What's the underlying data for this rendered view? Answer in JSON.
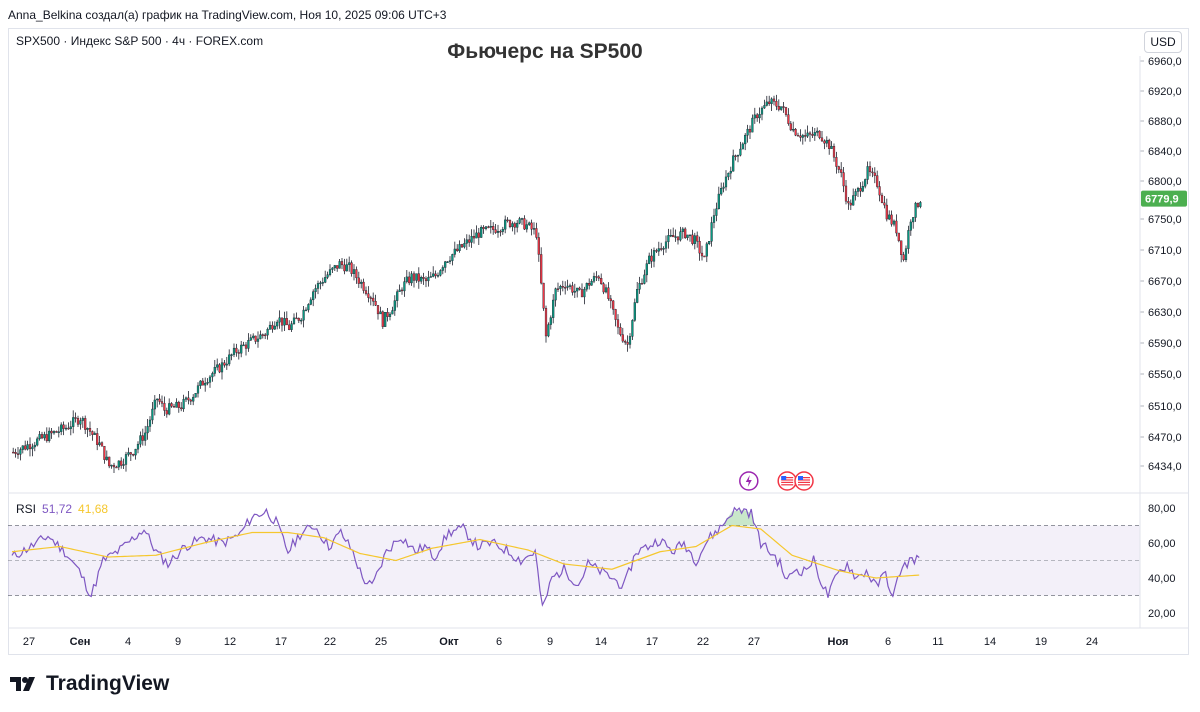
{
  "header": {
    "author_line": "Anna_Belkina создал(а) график на TradingView.com, Ноя 10, 2025 09:06 UTC+3",
    "symbol_line": "SPX500 · Индекс S&P 500 · 4ч · FOREX.com",
    "chart_title": "Фьючерс на SP500",
    "currency": "USD"
  },
  "brand": {
    "name": "TradingView",
    "logo_icon": "tradingview-logo-icon"
  },
  "colors": {
    "up": "#089981",
    "down": "#f23645",
    "candle_body": "#1e222d",
    "rsi": "#7e57c2",
    "rsi_ma": "#f5c72e",
    "price_label": "#4caf50"
  },
  "chart_data": {
    "type": "candlestick",
    "timeframe": "4ч",
    "price_axis": {
      "ticks": [
        "6960,0",
        "6920,0",
        "6880,0",
        "6840,0",
        "6800,0",
        "6750,0",
        "6710,0",
        "6670,0",
        "6630,0",
        "6590,0",
        "6550,0",
        "6510,0",
        "6470,0",
        "6434,0"
      ],
      "range": [
        6420,
        6975
      ]
    },
    "last_price": "6779,9",
    "time_axis": [
      "27",
      "Сен",
      "4",
      "9",
      "12",
      "17",
      "22",
      "25",
      "Окт",
      "6",
      "9",
      "14",
      "17",
      "22",
      "27",
      "Ноя",
      "6",
      "11",
      "14",
      "19",
      "24"
    ],
    "path_points": [
      [
        0,
        6450
      ],
      [
        8,
        6462
      ],
      [
        15,
        6472
      ],
      [
        22,
        6482
      ],
      [
        28,
        6495
      ],
      [
        36,
        6460
      ],
      [
        40,
        6432
      ],
      [
        45,
        6438
      ],
      [
        50,
        6452
      ],
      [
        55,
        6475
      ],
      [
        60,
        6520
      ],
      [
        63,
        6505
      ],
      [
        70,
        6510
      ],
      [
        75,
        6525
      ],
      [
        80,
        6545
      ],
      [
        86,
        6560
      ],
      [
        93,
        6582
      ],
      [
        98,
        6592
      ],
      [
        105,
        6605
      ],
      [
        110,
        6625
      ],
      [
        115,
        6612
      ],
      [
        120,
        6628
      ],
      [
        125,
        6660
      ],
      [
        130,
        6678
      ],
      [
        136,
        6695
      ],
      [
        140,
        6690
      ],
      [
        145,
        6670
      ],
      [
        150,
        6650
      ],
      [
        154,
        6620
      ],
      [
        158,
        6640
      ],
      [
        162,
        6665
      ],
      [
        166,
        6678
      ],
      [
        172,
        6672
      ],
      [
        176,
        6680
      ],
      [
        180,
        6700
      ],
      [
        185,
        6712
      ],
      [
        190,
        6725
      ],
      [
        194,
        6735
      ],
      [
        200,
        6740
      ],
      [
        206,
        6748
      ],
      [
        210,
        6750
      ],
      [
        214,
        6745
      ],
      [
        218,
        6735
      ],
      [
        222,
        6600
      ],
      [
        226,
        6660
      ],
      [
        230,
        6670
      ],
      [
        236,
        6655
      ],
      [
        240,
        6670
      ],
      [
        244,
        6680
      ],
      [
        248,
        6650
      ],
      [
        252,
        6610
      ],
      [
        256,
        6590
      ],
      [
        260,
        6660
      ],
      [
        265,
        6700
      ],
      [
        270,
        6720
      ],
      [
        275,
        6730
      ],
      [
        280,
        6735
      ],
      [
        284,
        6725
      ],
      [
        288,
        6700
      ],
      [
        292,
        6760
      ],
      [
        296,
        6800
      ],
      [
        300,
        6830
      ],
      [
        305,
        6860
      ],
      [
        310,
        6890
      ],
      [
        315,
        6905
      ],
      [
        320,
        6900
      ],
      [
        325,
        6870
      ],
      [
        330,
        6860
      ],
      [
        336,
        6865
      ],
      [
        340,
        6850
      ],
      [
        345,
        6810
      ],
      [
        348,
        6770
      ],
      [
        352,
        6790
      ],
      [
        356,
        6815
      ],
      [
        360,
        6800
      ],
      [
        364,
        6760
      ],
      [
        368,
        6740
      ],
      [
        371,
        6700
      ],
      [
        374,
        6755
      ],
      [
        378,
        6780
      ]
    ],
    "rsi": {
      "label": "RSI",
      "value": "51,72",
      "ma_value": "41,68",
      "axis_ticks": [
        "80,00",
        "60,00",
        "40,00",
        "20,00"
      ],
      "upper_band": 70,
      "middle_band": 50,
      "lower_band": 30,
      "path_points": [
        [
          0,
          52
        ],
        [
          8,
          58
        ],
        [
          15,
          64
        ],
        [
          22,
          55
        ],
        [
          28,
          44
        ],
        [
          33,
          30
        ],
        [
          38,
          50
        ],
        [
          45,
          56
        ],
        [
          55,
          68
        ],
        [
          60,
          55
        ],
        [
          65,
          48
        ],
        [
          72,
          58
        ],
        [
          80,
          63
        ],
        [
          88,
          60
        ],
        [
          95,
          65
        ],
        [
          100,
          75
        ],
        [
          106,
          78
        ],
        [
          110,
          72
        ],
        [
          115,
          55
        ],
        [
          120,
          65
        ],
        [
          126,
          70
        ],
        [
          132,
          58
        ],
        [
          137,
          66
        ],
        [
          142,
          55
        ],
        [
          146,
          40
        ],
        [
          150,
          35
        ],
        [
          156,
          55
        ],
        [
          162,
          64
        ],
        [
          168,
          55
        ],
        [
          172,
          58
        ],
        [
          176,
          52
        ],
        [
          182,
          66
        ],
        [
          188,
          68
        ],
        [
          194,
          58
        ],
        [
          200,
          60
        ],
        [
          206,
          56
        ],
        [
          212,
          50
        ],
        [
          218,
          55
        ],
        [
          221,
          22
        ],
        [
          225,
          40
        ],
        [
          230,
          45
        ],
        [
          236,
          36
        ],
        [
          240,
          48
        ],
        [
          245,
          44
        ],
        [
          250,
          40
        ],
        [
          255,
          35
        ],
        [
          260,
          55
        ],
        [
          265,
          58
        ],
        [
          270,
          62
        ],
        [
          275,
          55
        ],
        [
          280,
          60
        ],
        [
          285,
          50
        ],
        [
          290,
          62
        ],
        [
          296,
          70
        ],
        [
          300,
          78
        ],
        [
          305,
          79
        ],
        [
          308,
          77
        ],
        [
          312,
          60
        ],
        [
          318,
          52
        ],
        [
          320,
          48
        ],
        [
          323,
          38
        ],
        [
          326,
          45
        ],
        [
          330,
          44
        ],
        [
          334,
          50
        ],
        [
          338,
          35
        ],
        [
          340,
          30
        ],
        [
          344,
          42
        ],
        [
          348,
          48
        ],
        [
          352,
          40
        ],
        [
          356,
          44
        ],
        [
          360,
          35
        ],
        [
          364,
          43
        ],
        [
          367,
          28
        ],
        [
          370,
          44
        ],
        [
          374,
          50
        ],
        [
          378,
          51.72
        ]
      ],
      "ma_points": [
        [
          0,
          55
        ],
        [
          20,
          58
        ],
        [
          40,
          52
        ],
        [
          60,
          53
        ],
        [
          80,
          60
        ],
        [
          100,
          66
        ],
        [
          115,
          66
        ],
        [
          130,
          63
        ],
        [
          145,
          54
        ],
        [
          160,
          50
        ],
        [
          175,
          57
        ],
        [
          195,
          62
        ],
        [
          215,
          56
        ],
        [
          230,
          48
        ],
        [
          250,
          45
        ],
        [
          270,
          55
        ],
        [
          285,
          58
        ],
        [
          300,
          70
        ],
        [
          312,
          68
        ],
        [
          325,
          53
        ],
        [
          345,
          44
        ],
        [
          360,
          40
        ],
        [
          378,
          41.68
        ]
      ]
    },
    "event_markers": [
      {
        "icon": "lightning-event-icon",
        "slot": 307
      },
      {
        "icon": "us-flag-event-icon",
        "slot": 323
      },
      {
        "icon": "us-flag-event-icon",
        "slot": 330
      }
    ]
  }
}
